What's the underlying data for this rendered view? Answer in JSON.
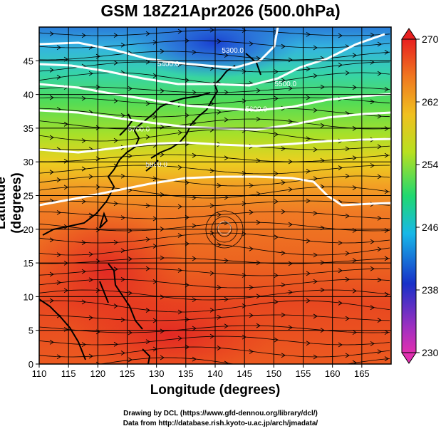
{
  "title": "GSM 18Z21Apr2026 (500.0hPa)",
  "xlabel": "Longitude (degrees)",
  "ylabel": "Latitude  (degrees)",
  "credit_line1": "Drawing by DCL (https://www.gfd-dennou.org/library/dcl/)",
  "credit_line2": "Data from http://database.rish.kyoto-u.ac.jp/arch/jmadata/",
  "map": {
    "lon_range": [
      110,
      170
    ],
    "lat_range": [
      0,
      50
    ],
    "lon_ticks": [
      110,
      115,
      120,
      125,
      130,
      135,
      140,
      145,
      150,
      155,
      160,
      165
    ],
    "lat_ticks": [
      0,
      5,
      10,
      15,
      20,
      25,
      30,
      35,
      40,
      45
    ],
    "grid": true
  },
  "colorbar": {
    "ticks": [
      270,
      262,
      254,
      246,
      238,
      230
    ],
    "colors": [
      "#e8e0e8",
      "#d020b0",
      "#1830c8",
      "#18b8e8",
      "#20d870",
      "#b8e020",
      "#f0c020",
      "#f07820",
      "#e82020"
    ]
  },
  "contours": [
    {
      "label": "5300.0",
      "lon": 143,
      "lat": 46.2
    },
    {
      "label": "5400.0",
      "lon": 132,
      "lat": 44.2
    },
    {
      "label": "5500.0",
      "lon": 152,
      "lat": 41.2
    },
    {
      "label": "5600.0",
      "lon": 147,
      "lat": 37.5
    },
    {
      "label": "5700.0",
      "lon": 127,
      "lat": 34.5
    },
    {
      "label": "5800.0",
      "lon": 130,
      "lat": 29.3
    }
  ]
}
